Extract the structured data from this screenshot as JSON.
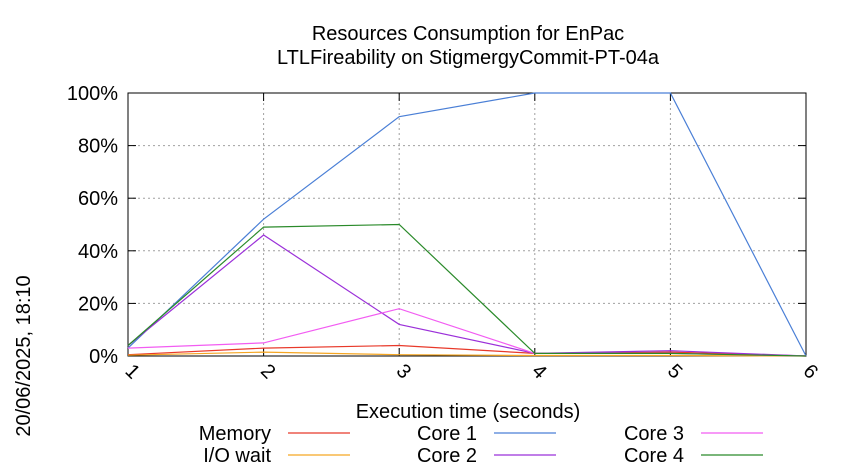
{
  "chart_data": {
    "type": "line",
    "title": "Resources Consumption for EnPac",
    "subtitle": "LTLFireability on StigmergyCommit-PT-04a",
    "xlabel": "Execution time (seconds)",
    "ylabel": "",
    "side_label": "20/06/2025, 18:10",
    "x": [
      1,
      2,
      3,
      4,
      5,
      6
    ],
    "xlim": [
      1,
      6
    ],
    "ylim": [
      0,
      100
    ],
    "y_ticks": [
      "0%",
      "20%",
      "40%",
      "60%",
      "80%",
      "100%"
    ],
    "x_ticks": [
      "1",
      "2",
      "3",
      "4",
      "5",
      "6"
    ],
    "grid": true,
    "legend_position": "bottom",
    "series": [
      {
        "name": "Memory",
        "color": "#e8392a",
        "values": [
          0.5,
          3,
          4,
          1,
          1.5,
          0
        ]
      },
      {
        "name": "I/O wait",
        "color": "#f5a623",
        "values": [
          0.3,
          1.5,
          0.5,
          0.2,
          0.2,
          0
        ]
      },
      {
        "name": "Core 1",
        "color": "#4a7fd6",
        "values": [
          3,
          52,
          91,
          100,
          100,
          0
        ]
      },
      {
        "name": "Core 2",
        "color": "#9b30d9",
        "values": [
          4,
          46,
          12,
          1,
          2,
          0
        ]
      },
      {
        "name": "Core 3",
        "color": "#f25cf2",
        "values": [
          3,
          5,
          18,
          1,
          1,
          0
        ]
      },
      {
        "name": "Core 4",
        "color": "#2a8a2a",
        "values": [
          4,
          49,
          50,
          1,
          1,
          0
        ]
      }
    ]
  }
}
